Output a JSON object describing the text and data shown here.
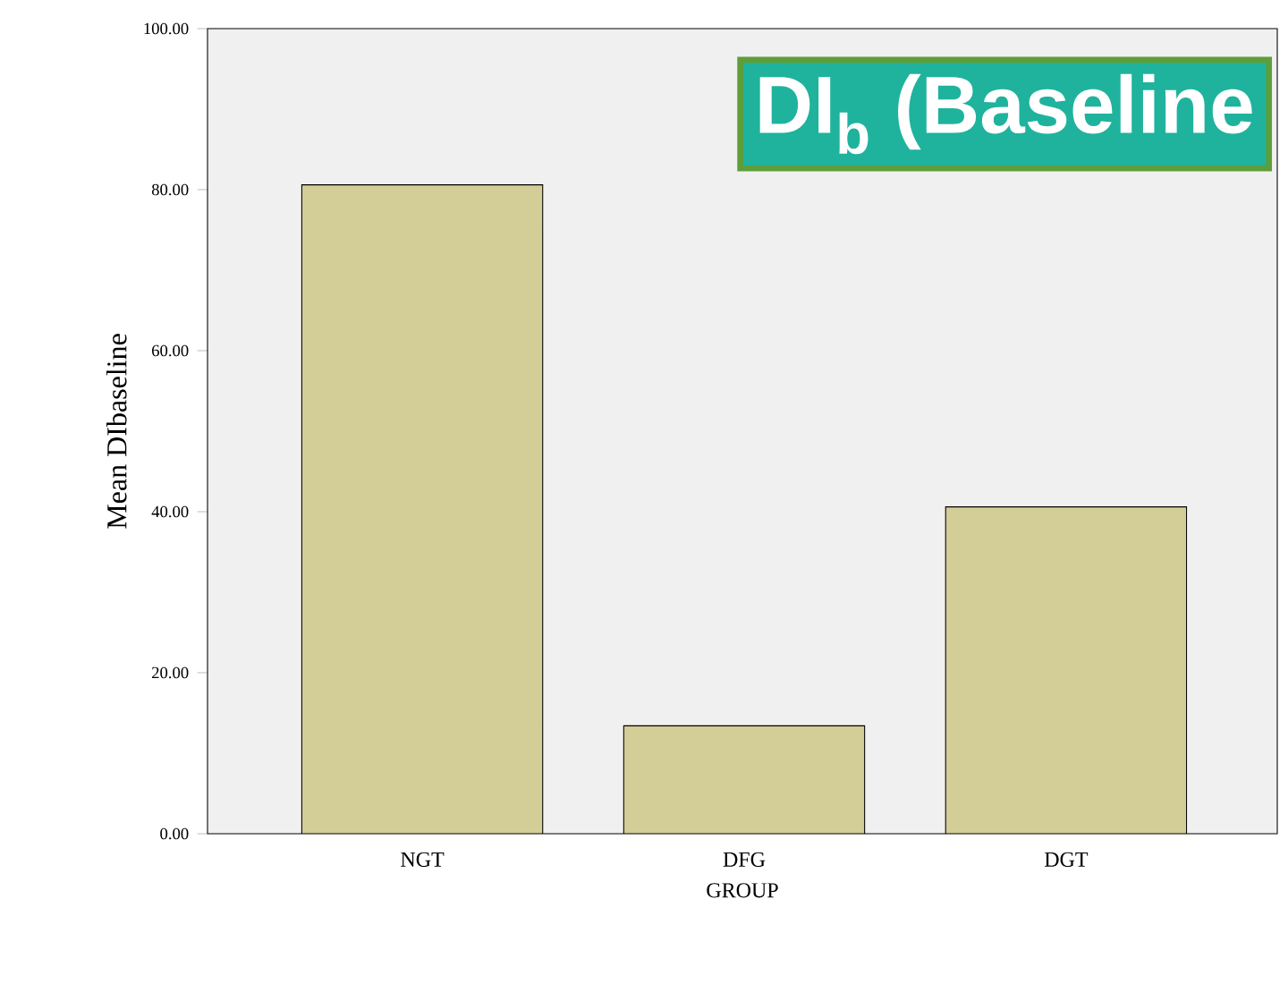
{
  "chart_data": {
    "type": "bar",
    "title": "DI$_{b}$ (Baseline",
    "xlabel": "GROUP",
    "ylabel": "Mean DIbaseline",
    "categories": [
      "NGT",
      "DFG",
      "DGT"
    ],
    "values": [
      80.6,
      13.4,
      40.6
    ],
    "color": "#d3cd98",
    "ylim": [
      0,
      100
    ],
    "yticks": [
      {
        "value": 0,
        "label": "0.00"
      },
      {
        "value": 20,
        "label": "20.00"
      },
      {
        "value": 40,
        "label": "40.00"
      },
      {
        "value": 60,
        "label": "60.00"
      },
      {
        "value": 80,
        "label": "80.00"
      },
      {
        "value": 100,
        "label": "100.00"
      }
    ],
    "grid": false
  }
}
